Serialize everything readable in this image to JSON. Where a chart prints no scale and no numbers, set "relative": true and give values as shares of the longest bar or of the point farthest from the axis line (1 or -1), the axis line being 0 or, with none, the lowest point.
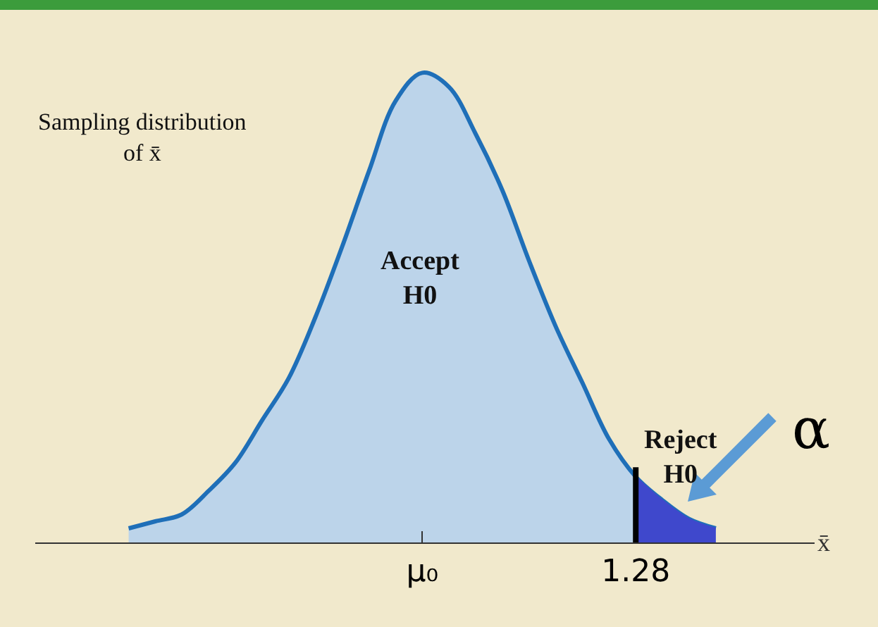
{
  "chart_data": {
    "type": "area",
    "relative": true,
    "xlabel": "x̄",
    "categories": [
      null,
      null,
      null,
      null,
      null,
      null,
      null,
      null,
      null,
      null,
      null,
      "μ₀",
      null,
      null,
      null,
      null,
      null,
      null,
      null,
      "1.28",
      null,
      null,
      null
    ],
    "series": [
      {
        "color": "#1f6fb8",
        "values": [
          0.03,
          0.045,
          0.06,
          0.11,
          0.17,
          0.26,
          0.35,
          0.48,
          0.63,
          0.79,
          0.94,
          1.0,
          0.97,
          0.87,
          0.75,
          0.6,
          0.46,
          0.34,
          0.22,
          0.14,
          0.09,
          0.05,
          0.03
        ]
      },
      {
        "color": "#3f48cc",
        "values": [
          null,
          null,
          null,
          null,
          null,
          null,
          null,
          null,
          null,
          null,
          null,
          null,
          null,
          null,
          null,
          null,
          null,
          null,
          null,
          0.14,
          0.09,
          0.05,
          0.03
        ]
      }
    ],
    "ref_lines": [
      {
        "axis": "x",
        "value": "1.28",
        "color": "#000000"
      }
    ],
    "annotations": [
      "Sampling distribution\nof x̄",
      "Accept\nH0",
      "Reject\nH0",
      "α"
    ],
    "grid": false
  }
}
